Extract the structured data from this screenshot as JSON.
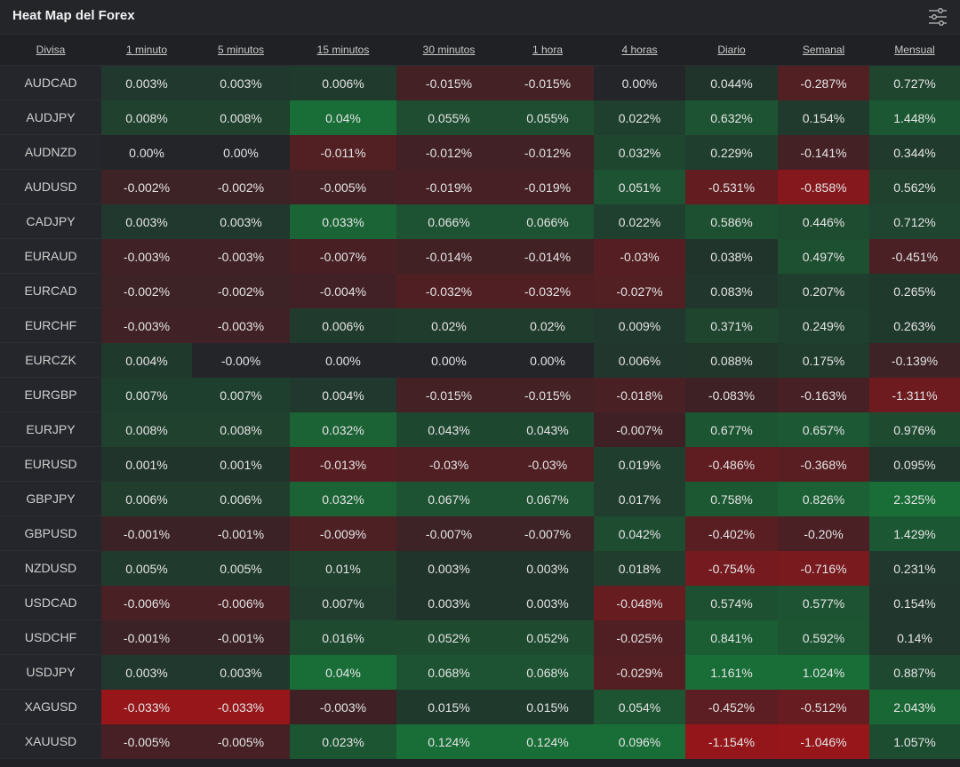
{
  "header": {
    "title": "Heat Map del Forex",
    "settings_icon": "settings-sliders-icon"
  },
  "columns": [
    "Divisa",
    "1 minuto",
    "5 minutos",
    "15 minutos",
    "30 minutos",
    "1 hora",
    "4 horas",
    "Diario",
    "Semanal",
    "Mensual"
  ],
  "colors": {
    "positive": "#1f6b3a",
    "negative": "#8f1d1d",
    "neutral": "#232529"
  },
  "rows": [
    {
      "pair": "AUDCAD",
      "values": [
        "0.003%",
        "0.003%",
        "0.006%",
        "-0.015%",
        "-0.015%",
        "0.00%",
        "0.044%",
        "-0.287%",
        "0.727%"
      ]
    },
    {
      "pair": "AUDJPY",
      "values": [
        "0.008%",
        "0.008%",
        "0.04%",
        "0.055%",
        "0.055%",
        "0.022%",
        "0.632%",
        "0.154%",
        "1.448%"
      ]
    },
    {
      "pair": "AUDNZD",
      "values": [
        "0.00%",
        "0.00%",
        "-0.011%",
        "-0.012%",
        "-0.012%",
        "0.032%",
        "0.229%",
        "-0.141%",
        "0.344%"
      ]
    },
    {
      "pair": "AUDUSD",
      "values": [
        "-0.002%",
        "-0.002%",
        "-0.005%",
        "-0.019%",
        "-0.019%",
        "0.051%",
        "-0.531%",
        "-0.858%",
        "0.562%"
      ]
    },
    {
      "pair": "CADJPY",
      "values": [
        "0.003%",
        "0.003%",
        "0.033%",
        "0.066%",
        "0.066%",
        "0.022%",
        "0.586%",
        "0.446%",
        "0.712%"
      ]
    },
    {
      "pair": "EURAUD",
      "values": [
        "-0.003%",
        "-0.003%",
        "-0.007%",
        "-0.014%",
        "-0.014%",
        "-0.03%",
        "0.038%",
        "0.497%",
        "-0.451%"
      ]
    },
    {
      "pair": "EURCAD",
      "values": [
        "-0.002%",
        "-0.002%",
        "-0.004%",
        "-0.032%",
        "-0.032%",
        "-0.027%",
        "0.083%",
        "0.207%",
        "0.265%"
      ]
    },
    {
      "pair": "EURCHF",
      "values": [
        "-0.003%",
        "-0.003%",
        "0.006%",
        "0.02%",
        "0.02%",
        "0.009%",
        "0.371%",
        "0.249%",
        "0.263%"
      ]
    },
    {
      "pair": "EURCZK",
      "values": [
        "0.004%",
        "-0.00%",
        "0.00%",
        "0.00%",
        "0.00%",
        "0.006%",
        "0.088%",
        "0.175%",
        "-0.139%"
      ]
    },
    {
      "pair": "EURGBP",
      "values": [
        "0.007%",
        "0.007%",
        "0.004%",
        "-0.015%",
        "-0.015%",
        "-0.018%",
        "-0.083%",
        "-0.163%",
        "-1.311%"
      ]
    },
    {
      "pair": "EURJPY",
      "values": [
        "0.008%",
        "0.008%",
        "0.032%",
        "0.043%",
        "0.043%",
        "-0.007%",
        "0.677%",
        "0.657%",
        "0.976%"
      ]
    },
    {
      "pair": "EURUSD",
      "values": [
        "0.001%",
        "0.001%",
        "-0.013%",
        "-0.03%",
        "-0.03%",
        "0.019%",
        "-0.486%",
        "-0.368%",
        "0.095%"
      ]
    },
    {
      "pair": "GBPJPY",
      "values": [
        "0.006%",
        "0.006%",
        "0.032%",
        "0.067%",
        "0.067%",
        "0.017%",
        "0.758%",
        "0.826%",
        "2.325%"
      ]
    },
    {
      "pair": "GBPUSD",
      "values": [
        "-0.001%",
        "-0.001%",
        "-0.009%",
        "-0.007%",
        "-0.007%",
        "0.042%",
        "-0.402%",
        "-0.20%",
        "1.429%"
      ]
    },
    {
      "pair": "NZDUSD",
      "values": [
        "0.005%",
        "0.005%",
        "0.01%",
        "0.003%",
        "0.003%",
        "0.018%",
        "-0.754%",
        "-0.716%",
        "0.231%"
      ]
    },
    {
      "pair": "USDCAD",
      "values": [
        "-0.006%",
        "-0.006%",
        "0.007%",
        "0.003%",
        "0.003%",
        "-0.048%",
        "0.574%",
        "0.577%",
        "0.154%"
      ]
    },
    {
      "pair": "USDCHF",
      "values": [
        "-0.001%",
        "-0.001%",
        "0.016%",
        "0.052%",
        "0.052%",
        "-0.025%",
        "0.841%",
        "0.592%",
        "0.14%"
      ]
    },
    {
      "pair": "USDJPY",
      "values": [
        "0.003%",
        "0.003%",
        "0.04%",
        "0.068%",
        "0.068%",
        "-0.029%",
        "1.161%",
        "1.024%",
        "0.887%"
      ]
    },
    {
      "pair": "XAGUSD",
      "values": [
        "-0.033%",
        "-0.033%",
        "-0.003%",
        "0.015%",
        "0.015%",
        "0.054%",
        "-0.452%",
        "-0.512%",
        "2.043%"
      ]
    },
    {
      "pair": "XAUUSD",
      "values": [
        "-0.005%",
        "-0.005%",
        "0.023%",
        "0.124%",
        "0.124%",
        "0.096%",
        "-1.154%",
        "-1.046%",
        "1.057%"
      ]
    }
  ]
}
